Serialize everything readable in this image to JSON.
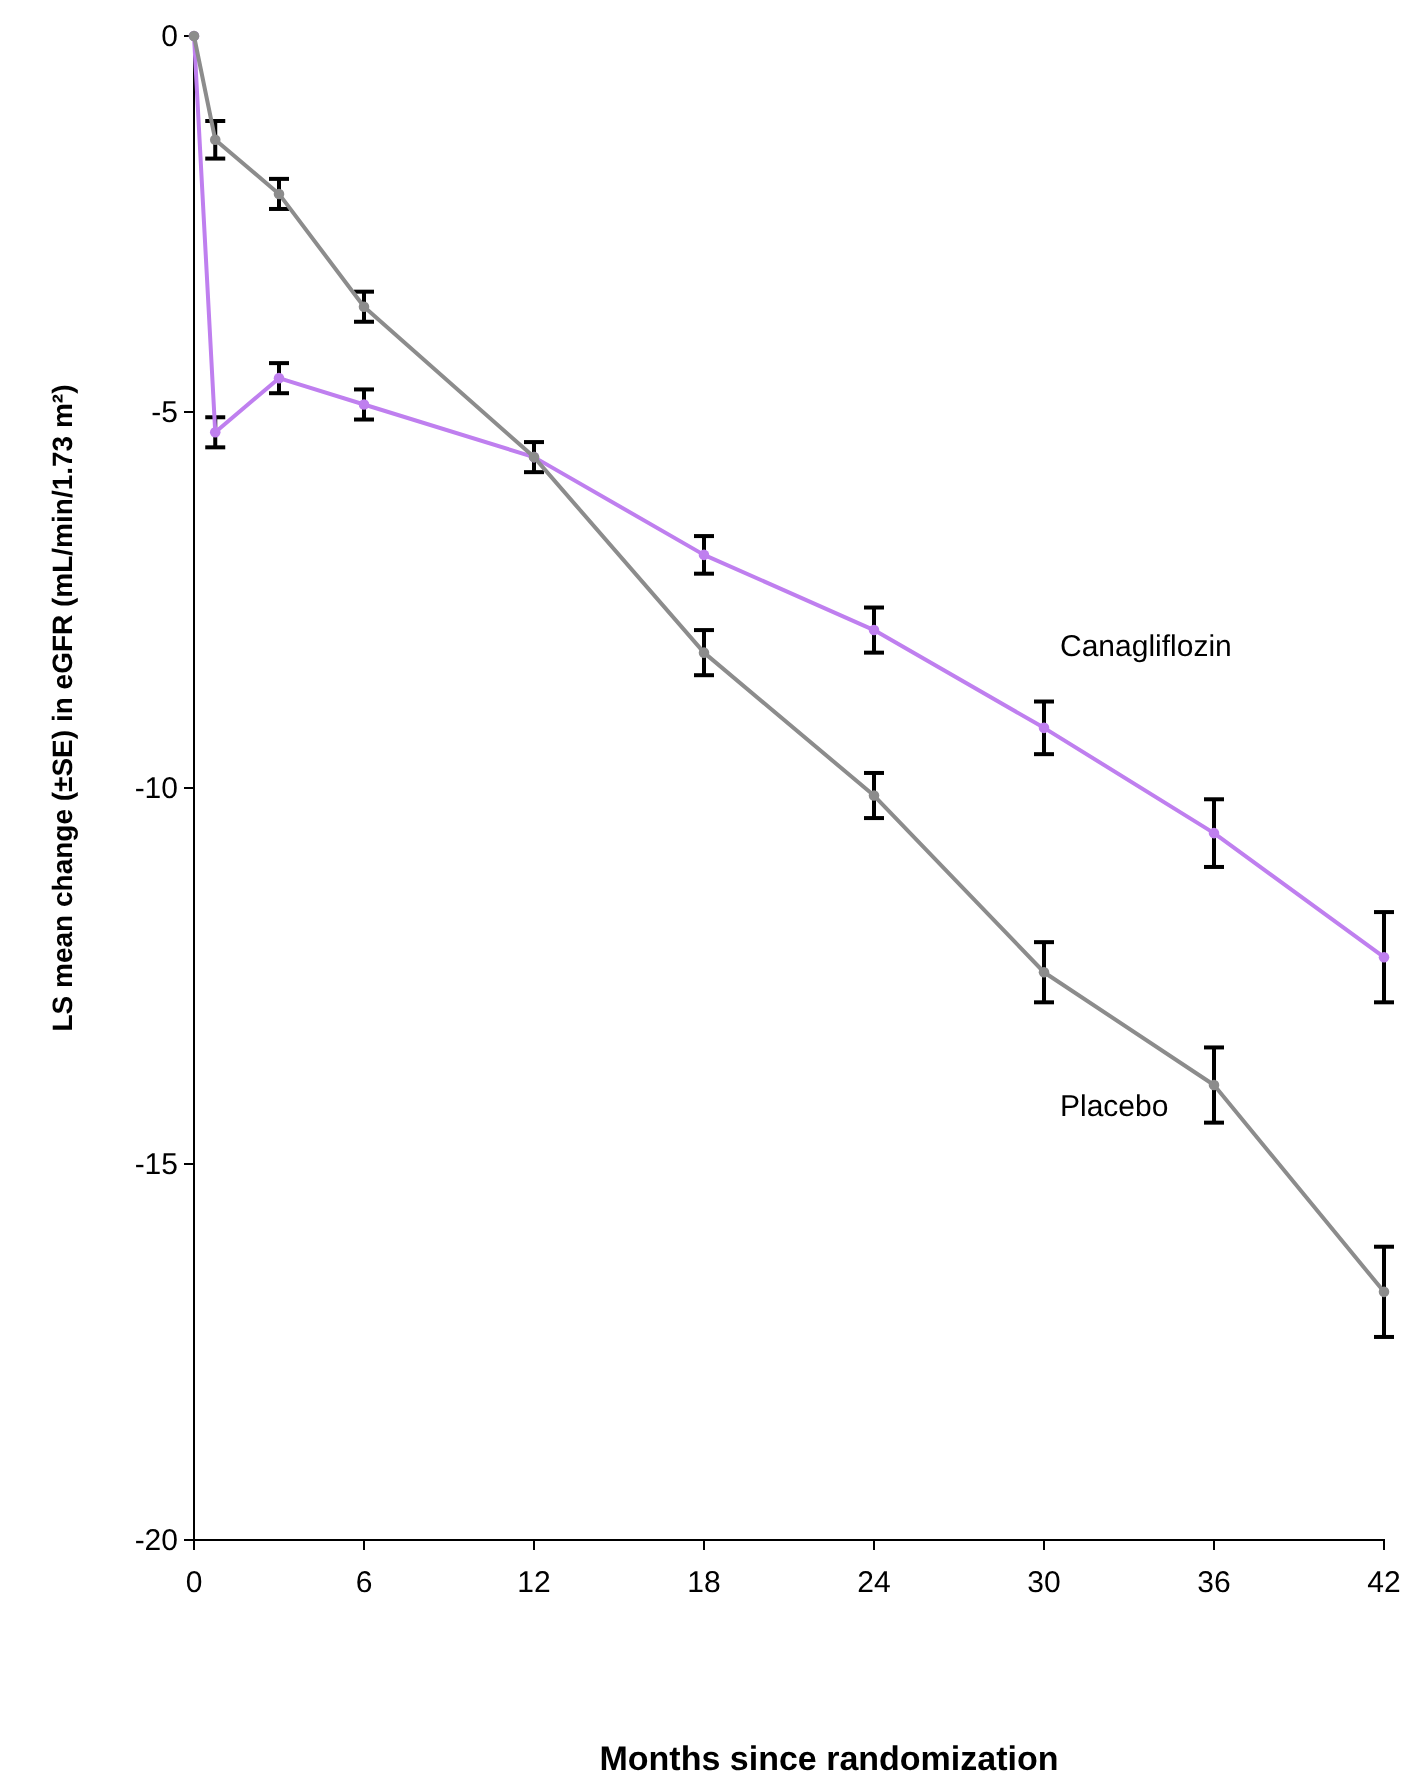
{
  "chart_data": {
    "type": "line",
    "xlabel": "Months since randomization",
    "ylabel": "LS mean change (±SE) in eGFR (mL/min/1.73 m²)",
    "x": [
      0,
      0.75,
      3,
      6,
      12,
      18,
      24,
      30,
      36,
      42
    ],
    "series": [
      {
        "name": "Canagliflozin",
        "color": "#bf7fef",
        "values": [
          0,
          -5.27,
          -4.55,
          -4.9,
          -5.6,
          -6.9,
          -7.9,
          -9.2,
          -10.6,
          -12.25
        ],
        "errors": [
          null,
          0.2,
          0.2,
          0.2,
          null,
          0.25,
          0.3,
          0.35,
          0.45,
          0.6
        ]
      },
      {
        "name": "Placebo",
        "color": "#8c8c8c",
        "values": [
          0,
          -1.38,
          -2.1,
          -3.6,
          -5.6,
          -8.2,
          -10.1,
          -12.45,
          -13.95,
          -16.7
        ],
        "errors": [
          null,
          0.25,
          0.2,
          0.2,
          0.2,
          0.3,
          0.3,
          0.4,
          0.5,
          0.6
        ]
      }
    ],
    "xlim": [
      0,
      42
    ],
    "xticks": [
      0,
      6,
      12,
      18,
      24,
      30,
      36,
      42
    ],
    "ylim": [
      -20,
      0
    ],
    "yticks": [
      -20,
      -15,
      -10,
      -5,
      0
    ],
    "grid": false,
    "legend": false,
    "marker": "circle",
    "line_style": "solid"
  }
}
